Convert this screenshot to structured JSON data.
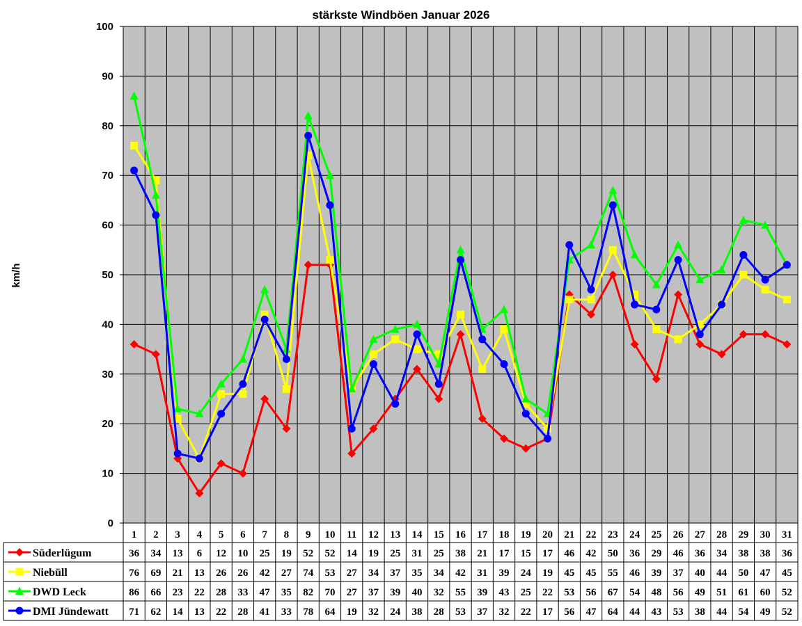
{
  "chart_data": {
    "type": "line",
    "title": "stärkste Windböen Januar 2026",
    "ylabel": "km/h",
    "ylim": [
      0,
      100
    ],
    "yticks": [
      0,
      10,
      20,
      30,
      40,
      50,
      60,
      70,
      80,
      90,
      100
    ],
    "grid": true,
    "legend": "data-table",
    "categories": [
      "1",
      "2",
      "3",
      "4",
      "5",
      "6",
      "7",
      "8",
      "9",
      "10",
      "11",
      "12",
      "13",
      "14",
      "15",
      "16",
      "17",
      "18",
      "19",
      "20",
      "21",
      "22",
      "23",
      "24",
      "25",
      "26",
      "27",
      "28",
      "29",
      "30",
      "31"
    ],
    "series": [
      {
        "name": "Süderlügum",
        "color": "#ff0000",
        "marker": "diamond",
        "values": [
          36,
          34,
          13,
          6,
          12,
          10,
          25,
          19,
          52,
          52,
          14,
          19,
          25,
          31,
          25,
          38,
          21,
          17,
          15,
          17,
          46,
          42,
          50,
          36,
          29,
          46,
          36,
          34,
          38,
          38,
          36
        ]
      },
      {
        "name": "Niebüll",
        "color": "#ffff00",
        "marker": "square",
        "values": [
          76,
          69,
          21,
          13,
          26,
          26,
          42,
          27,
          74,
          53,
          27,
          34,
          37,
          35,
          34,
          42,
          31,
          39,
          24,
          19,
          45,
          45,
          55,
          46,
          39,
          37,
          40,
          44,
          50,
          47,
          45
        ]
      },
      {
        "name": "DWD Leck",
        "color": "#00ff00",
        "marker": "triangle",
        "values": [
          86,
          66,
          23,
          22,
          28,
          33,
          47,
          35,
          82,
          70,
          27,
          37,
          39,
          40,
          32,
          55,
          39,
          43,
          25,
          22,
          53,
          56,
          67,
          54,
          48,
          56,
          49,
          51,
          61,
          60,
          52
        ]
      },
      {
        "name": "DMI Jündewatt",
        "color": "#0000ff",
        "marker": "circle",
        "values": [
          71,
          62,
          14,
          13,
          22,
          28,
          41,
          33,
          78,
          64,
          19,
          32,
          24,
          38,
          28,
          53,
          37,
          32,
          22,
          17,
          56,
          47,
          64,
          44,
          43,
          53,
          38,
          44,
          54,
          49,
          52
        ]
      }
    ],
    "plot_area_color": "#c0c0c0"
  }
}
